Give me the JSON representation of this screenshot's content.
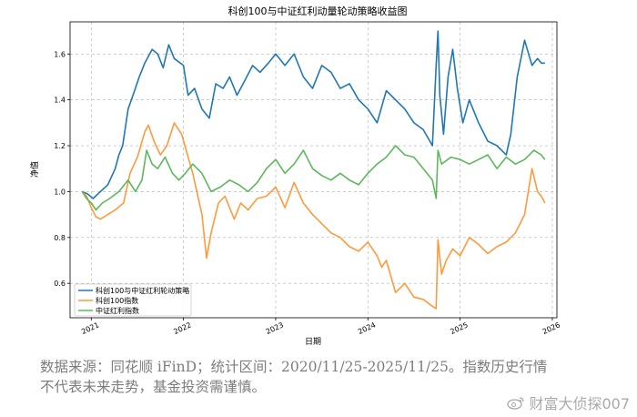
{
  "chart_data": {
    "type": "line",
    "title": "科创100与中证红利动量轮动策略收益图",
    "xlabel": "日期",
    "ylabel": "净值",
    "xlim": [
      2020.77,
      2026.05
    ],
    "ylim": [
      0.45,
      1.74
    ],
    "x_ticks": [
      2021,
      2022,
      2023,
      2024,
      2025,
      2026
    ],
    "x_tick_labels": [
      "2021",
      "2022",
      "2023",
      "2024",
      "2025",
      "2026"
    ],
    "y_ticks": [
      0.6,
      0.8,
      1.0,
      1.2,
      1.4,
      1.6
    ],
    "y_tick_labels": [
      "0.6",
      "0.8",
      "1.0",
      "1.2",
      "1.4",
      "1.6"
    ],
    "grid": true,
    "legend_position": "lower-left",
    "series": [
      {
        "name": "科创100与中证红利轮动策略",
        "color": "#1f77b4",
        "x": [
          2020.9,
          2020.96,
          2021.02,
          2021.1,
          2021.18,
          2021.26,
          2021.3,
          2021.34,
          2021.4,
          2021.47,
          2021.52,
          2021.58,
          2021.66,
          2021.72,
          2021.78,
          2021.84,
          2021.9,
          2022.0,
          2022.05,
          2022.12,
          2022.2,
          2022.28,
          2022.35,
          2022.43,
          2022.5,
          2022.58,
          2022.66,
          2022.75,
          2022.83,
          2022.92,
          2023.0,
          2023.1,
          2023.2,
          2023.3,
          2023.4,
          2023.5,
          2023.6,
          2023.7,
          2023.8,
          2023.9,
          2024.0,
          2024.1,
          2024.2,
          2024.3,
          2024.4,
          2024.5,
          2024.6,
          2024.7,
          2024.74,
          2024.76,
          2024.78,
          2024.82,
          2024.87,
          2024.92,
          2024.97,
          2025.03,
          2025.1,
          2025.2,
          2025.3,
          2025.4,
          2025.5,
          2025.55,
          2025.62,
          2025.7,
          2025.78,
          2025.84,
          2025.88,
          2025.92
        ],
        "values": [
          1.0,
          0.99,
          0.97,
          1.0,
          1.03,
          1.1,
          1.16,
          1.2,
          1.36,
          1.44,
          1.5,
          1.56,
          1.62,
          1.6,
          1.54,
          1.64,
          1.58,
          1.55,
          1.42,
          1.45,
          1.36,
          1.32,
          1.47,
          1.45,
          1.5,
          1.42,
          1.48,
          1.55,
          1.52,
          1.56,
          1.6,
          1.55,
          1.6,
          1.5,
          1.45,
          1.55,
          1.52,
          1.45,
          1.47,
          1.4,
          1.36,
          1.3,
          1.44,
          1.4,
          1.36,
          1.3,
          1.27,
          1.2,
          1.55,
          1.7,
          1.42,
          1.25,
          1.5,
          1.62,
          1.45,
          1.3,
          1.4,
          1.3,
          1.22,
          1.2,
          1.16,
          1.25,
          1.5,
          1.66,
          1.55,
          1.58,
          1.56,
          1.56
        ]
      },
      {
        "name": "科创100指数",
        "color": "#ff9a3c",
        "x": [
          2020.9,
          2020.95,
          2021.0,
          2021.05,
          2021.1,
          2021.18,
          2021.26,
          2021.35,
          2021.42,
          2021.5,
          2021.58,
          2021.62,
          2021.68,
          2021.75,
          2021.82,
          2021.9,
          2021.98,
          2022.1,
          2022.2,
          2022.25,
          2022.3,
          2022.38,
          2022.45,
          2022.55,
          2022.62,
          2022.7,
          2022.8,
          2022.9,
          2023.0,
          2023.1,
          2023.2,
          2023.3,
          2023.4,
          2023.5,
          2023.6,
          2023.7,
          2023.8,
          2023.9,
          2024.0,
          2024.05,
          2024.1,
          2024.15,
          2024.2,
          2024.3,
          2024.4,
          2024.5,
          2024.6,
          2024.7,
          2024.74,
          2024.76,
          2024.8,
          2024.85,
          2024.92,
          2025.0,
          2025.1,
          2025.2,
          2025.3,
          2025.4,
          2025.5,
          2025.6,
          2025.7,
          2025.78,
          2025.84,
          2025.88,
          2025.92
        ],
        "values": [
          1.0,
          0.98,
          0.93,
          0.89,
          0.88,
          0.9,
          0.92,
          0.95,
          1.08,
          1.15,
          1.26,
          1.29,
          1.22,
          1.16,
          1.2,
          1.3,
          1.25,
          1.08,
          0.9,
          0.71,
          0.82,
          0.95,
          0.98,
          0.88,
          0.95,
          0.92,
          0.97,
          0.98,
          1.02,
          0.93,
          1.04,
          0.95,
          0.9,
          0.86,
          0.82,
          0.8,
          0.76,
          0.74,
          0.78,
          0.75,
          0.72,
          0.67,
          0.7,
          0.56,
          0.6,
          0.54,
          0.53,
          0.5,
          0.49,
          0.79,
          0.64,
          0.7,
          0.75,
          0.72,
          0.8,
          0.77,
          0.73,
          0.76,
          0.78,
          0.82,
          0.9,
          1.1,
          1.0,
          0.98,
          0.95
        ]
      },
      {
        "name": "中证红利指数",
        "color": "#5cb85c",
        "x": [
          2020.9,
          2020.95,
          2021.0,
          2021.05,
          2021.12,
          2021.2,
          2021.3,
          2021.4,
          2021.48,
          2021.55,
          2021.6,
          2021.66,
          2021.72,
          2021.8,
          2021.88,
          2021.95,
          2022.02,
          2022.1,
          2022.2,
          2022.3,
          2022.4,
          2022.5,
          2022.6,
          2022.7,
          2022.8,
          2022.9,
          2023.0,
          2023.1,
          2023.2,
          2023.3,
          2023.4,
          2023.5,
          2023.6,
          2023.7,
          2023.8,
          2023.9,
          2024.0,
          2024.1,
          2024.2,
          2024.3,
          2024.4,
          2024.5,
          2024.6,
          2024.7,
          2024.74,
          2024.76,
          2024.8,
          2024.9,
          2025.0,
          2025.1,
          2025.2,
          2025.3,
          2025.4,
          2025.5,
          2025.6,
          2025.7,
          2025.8,
          2025.88,
          2025.92
        ],
        "values": [
          1.0,
          0.97,
          0.95,
          0.92,
          0.95,
          0.97,
          1.0,
          1.05,
          1.0,
          1.05,
          1.18,
          1.12,
          1.1,
          1.15,
          1.08,
          1.05,
          1.08,
          1.12,
          1.08,
          1.0,
          1.02,
          1.05,
          1.03,
          1.0,
          1.04,
          1.1,
          1.14,
          1.08,
          1.12,
          1.18,
          1.1,
          1.07,
          1.05,
          1.08,
          1.05,
          1.03,
          1.08,
          1.12,
          1.15,
          1.2,
          1.16,
          1.15,
          1.1,
          1.05,
          0.97,
          1.18,
          1.12,
          1.15,
          1.14,
          1.12,
          1.14,
          1.16,
          1.1,
          1.15,
          1.12,
          1.14,
          1.18,
          1.16,
          1.14
        ]
      }
    ]
  },
  "footnote": {
    "line1": "数据来源：同花顺 iFinD；统计区间：2020/11/25-2025/11/25。指数历史行情",
    "line2": "不代表未来走势，基金投资需谨慎。"
  },
  "watermark": {
    "text": "财富大侦探007",
    "icon": "weibo-icon"
  }
}
